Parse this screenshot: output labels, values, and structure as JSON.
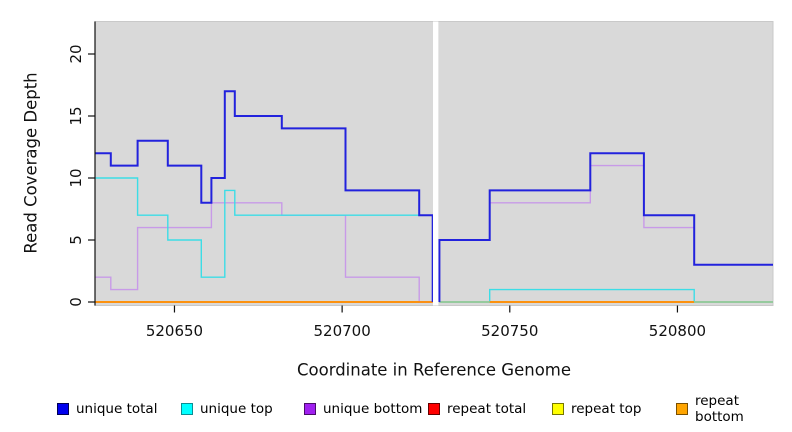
{
  "chart_data": {
    "type": "line",
    "subtype": "step-coverage-plot",
    "title": "",
    "xlabel": "Coordinate in Reference Genome",
    "ylabel": "Read Coverage Depth",
    "xlim": [
      520626.3,
      520828.5
    ],
    "ylim": [
      0,
      22
    ],
    "grid": false,
    "panel_background": "#d9d9d9",
    "gap_band": {
      "x_start": 520727.1,
      "x_end": 520728.7,
      "color": "#ffffff"
    },
    "x_axis": {
      "ticks": [
        {
          "label": "520650",
          "coord": 520650
        },
        {
          "label": "520700",
          "coord": 520700
        },
        {
          "label": "520750",
          "coord": 520750
        },
        {
          "label": "520800",
          "coord": 520800
        }
      ]
    },
    "y_axis": {
      "ticks": [
        {
          "label": "0",
          "value": 0
        },
        {
          "label": "5",
          "value": 5
        },
        {
          "label": "10",
          "value": 10
        },
        {
          "label": "15",
          "value": 15
        },
        {
          "label": "20",
          "value": 20
        }
      ]
    },
    "series": [
      {
        "name": "unique total",
        "line_color": "#2222dd",
        "line_width": 2,
        "legend_fill": "#0000ee",
        "legend_border": "#000055",
        "segments": [
          {
            "points": [
              [
                520626,
                12
              ],
              [
                520631,
                11
              ],
              [
                520639,
                13
              ],
              [
                520648,
                11
              ],
              [
                520658,
                8
              ],
              [
                520661,
                10
              ],
              [
                520665,
                17
              ],
              [
                520668,
                15
              ],
              [
                520682,
                14
              ],
              [
                520701,
                9
              ],
              [
                520723,
                7
              ],
              [
                520727,
                0
              ]
            ],
            "x_end": 520727
          },
          {
            "points": [
              [
                520729,
                0
              ],
              [
                520729,
                5
              ],
              [
                520744,
                9
              ],
              [
                520774,
                12
              ],
              [
                520790,
                7
              ],
              [
                520805,
                3
              ]
            ],
            "x_end": 520829
          }
        ]
      },
      {
        "name": "unique top",
        "line_color": "#3cdde6",
        "line_width": 1.4,
        "legend_fill": "#00ffff",
        "legend_border": "#0c8e93",
        "segments": [
          {
            "points": [
              [
                520626,
                10
              ],
              [
                520639,
                7
              ],
              [
                520648,
                5
              ],
              [
                520658,
                2
              ],
              [
                520665,
                9
              ],
              [
                520668,
                7
              ],
              [
                520727,
                0
              ]
            ],
            "x_end": 520727
          },
          {
            "points": [
              [
                520729,
                0
              ],
              [
                520744,
                1
              ],
              [
                520805,
                0
              ]
            ],
            "x_end": 520829
          }
        ]
      },
      {
        "name": "unique bottom",
        "line_color": "#c89ae8",
        "line_width": 1.4,
        "legend_fill": "#a020f0",
        "legend_border": "#4b0c6b",
        "segments": [
          {
            "points": [
              [
                520626,
                2
              ],
              [
                520631,
                1
              ],
              [
                520639,
                6
              ],
              [
                520661,
                8
              ],
              [
                520682,
                7
              ],
              [
                520701,
                2
              ],
              [
                520723,
                0
              ]
            ],
            "x_end": 520727
          },
          {
            "points": [
              [
                520729,
                0
              ],
              [
                520729,
                5
              ],
              [
                520744,
                8
              ],
              [
                520774,
                11
              ],
              [
                520790,
                6
              ],
              [
                520805,
                3
              ]
            ],
            "x_end": 520829
          }
        ]
      },
      {
        "name": "repeat total",
        "line_color": "#ff0000",
        "line_width": 1.2,
        "legend_fill": "#ff0000",
        "legend_border": "#650000",
        "segments": [
          {
            "points": [
              [
                520626,
                0
              ]
            ],
            "x_end": 520727
          },
          {
            "points": [
              [
                520729,
                0
              ]
            ],
            "x_end": 520829
          }
        ]
      },
      {
        "name": "repeat top",
        "line_color": "#ffff00",
        "line_width": 1.2,
        "legend_fill": "#ffff00",
        "legend_border": "#767600",
        "segments": [
          {
            "points": [
              [
                520626,
                0
              ]
            ],
            "x_end": 520727
          },
          {
            "points": [
              [
                520729,
                0
              ]
            ],
            "x_end": 520829
          }
        ]
      },
      {
        "name": "repeat bottom",
        "line_color": "#ff8c00",
        "line_width": 1.8,
        "legend_fill": "#ffa500",
        "legend_border": "#7a4f00",
        "segments": [
          {
            "points": [
              [
                520626,
                0
              ]
            ],
            "x_end": 520727
          },
          {
            "points": [
              [
                520729,
                0
              ]
            ],
            "x_end": 520744,
            "color": "#97ca9b"
          },
          {
            "points": [
              [
                520744,
                0
              ]
            ],
            "x_end": 520805
          },
          {
            "points": [
              [
                520805,
                0
              ]
            ],
            "x_end": 520829,
            "color": "#97ca9b"
          }
        ]
      }
    ],
    "legend": {
      "position": "bottom",
      "items": [
        "unique total",
        "unique top",
        "unique bottom",
        "repeat total",
        "repeat top",
        "repeat bottom"
      ]
    }
  }
}
